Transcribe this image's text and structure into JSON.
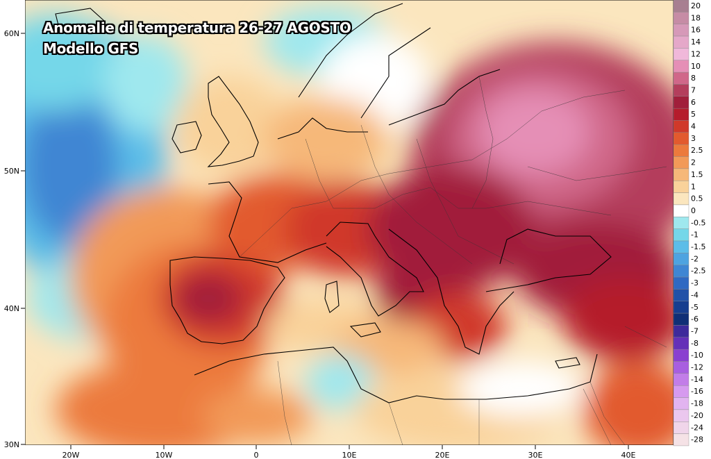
{
  "title": "Anomalie di temperatura 26-27 AGOSTO",
  "subtitle": "Modello GFS",
  "lat_labels": [
    "60N",
    "50N",
    "40N",
    "30N"
  ],
  "lon_labels": [
    "20W",
    "10W",
    "0",
    "10E",
    "20E",
    "30E",
    "40E"
  ],
  "colorbar": {
    "levels": [
      "20",
      "18",
      "16",
      "14",
      "12",
      "10",
      "8",
      "7",
      "6",
      "5",
      "4",
      "3",
      "2.5",
      "2",
      "1.5",
      "1",
      "0.5",
      "0",
      "-0.5",
      "-1",
      "-1.5",
      "-2",
      "-2.5",
      "-3",
      "-4",
      "-5",
      "-6",
      "-7",
      "-8",
      "-10",
      "-12",
      "-14",
      "-16",
      "-18",
      "-20",
      "-24",
      "-28"
    ],
    "colors": [
      "#a87f91",
      "#c68ca5",
      "#d699b8",
      "#e5a8c9",
      "#f0b8da",
      "#e58fb6",
      "#d06789",
      "#b43e5c",
      "#a11f3b",
      "#b51c2c",
      "#d0392a",
      "#e25a2e",
      "#ec7a3c",
      "#f29a58",
      "#f6b879",
      "#f9d29a",
      "#fbe6be",
      "#ffffff",
      "#9fe8ee",
      "#74d7e9",
      "#5cbde8",
      "#4ea3e0",
      "#3f86d3",
      "#2f69c2",
      "#2151a8",
      "#173e8f",
      "#102f76",
      "#3e2a9b",
      "#6530b8",
      "#8a3fd0",
      "#a85ee0",
      "#c27de8",
      "#d69aef",
      "#e2b4f0",
      "#ebc7ee",
      "#f0d5ea",
      "#f5e2e6"
    ]
  }
}
